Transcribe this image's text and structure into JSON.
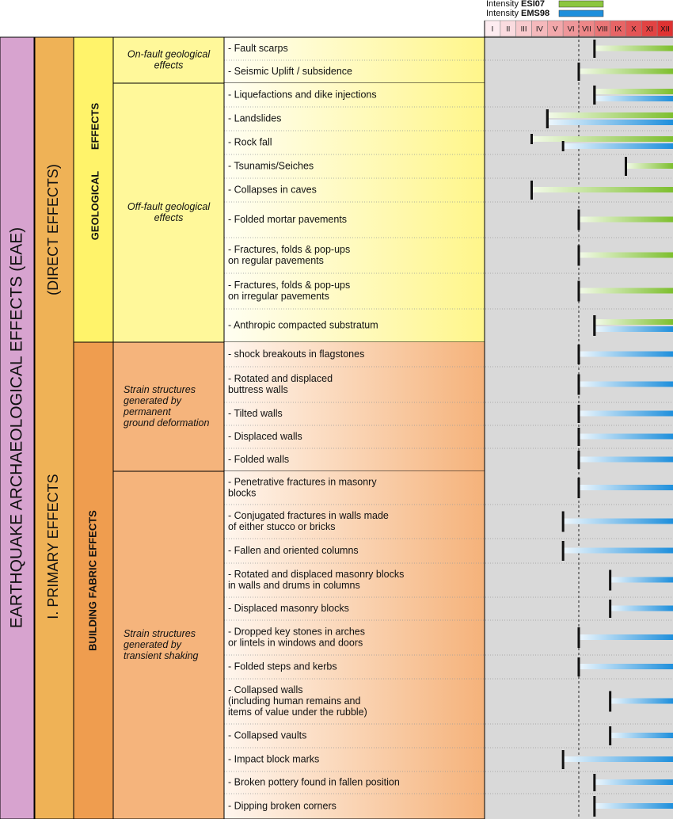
{
  "legend": [
    {
      "prefix": "Intensity",
      "name": "ESI07",
      "color": "#8cc63f"
    },
    {
      "prefix": "Intensity",
      "name": "EMS98",
      "color": "#1e8fdc"
    }
  ],
  "scale": [
    "I",
    "II",
    "III",
    "IV",
    "V",
    "VI",
    "VII",
    "VIII",
    "IX",
    "X",
    "XI",
    "XII"
  ],
  "title": "EARTHQUAKE ARCHAEOLOGICAL EFFECTS (EAE)",
  "class": {
    "name": "I. PRIMARY EFFECTS",
    "note": "(DIRECT EFFECTS)"
  },
  "groups": [
    {
      "name": [
        "GEOLOGICAL",
        "EFFECTS"
      ],
      "subgroups": [
        {
          "name": [
            "On-fault geological",
            "effects"
          ],
          "rows": [
            {
              "label": [
                "- Fault scarps"
              ],
              "esi": 8
            },
            {
              "label": [
                "- Seismic Uplift / subsidence"
              ],
              "esi": 7
            }
          ]
        },
        {
          "name": [
            "Off-fault geological",
            "effects"
          ],
          "rows": [
            {
              "label": [
                "- Liquefactions and dike injections"
              ],
              "esi": 8,
              "ems": 8
            },
            {
              "label": [
                "- Landslides"
              ],
              "esi": 5,
              "ems": 5
            },
            {
              "label": [
                "- Rock fall"
              ],
              "esi": 4,
              "ems": 6
            },
            {
              "label": [
                "- Tsunamis/Seiches"
              ],
              "esi": 10
            },
            {
              "label": [
                "- Collapses in caves"
              ],
              "esi": 4
            },
            {
              "label": [
                "- Folded mortar pavements"
              ],
              "esi": 7
            },
            {
              "label": [
                "- Fractures, folds & pop-ups",
                "on regular pavements"
              ],
              "esi": 7
            },
            {
              "label": [
                "- Fractures, folds & pop-ups",
                "on irregular pavements"
              ],
              "esi": 7
            },
            {
              "label": [
                "- Anthropic compacted substratum"
              ],
              "esi": 8,
              "ems": 8
            }
          ]
        }
      ]
    },
    {
      "name": [
        "BUILDING FABRIC EFFECTS"
      ],
      "subgroups": [
        {
          "name": [
            "Strain structures",
            "generated by",
            "permanent",
            "ground deformation"
          ],
          "rows": [
            {
              "label": [
                "- shock breakouts in flagstones"
              ],
              "ems": 7
            },
            {
              "label": [
                "- Rotated and displaced",
                "buttress walls"
              ],
              "ems": 7
            },
            {
              "label": [
                "- Tilted walls"
              ],
              "ems": 7
            },
            {
              "label": [
                "- Displaced walls"
              ],
              "ems": 7
            },
            {
              "label": [
                "- Folded walls"
              ],
              "ems": 7
            }
          ]
        },
        {
          "name": [
            "Strain structures",
            "generated by",
            "transient shaking"
          ],
          "rows": [
            {
              "label": [
                "- Penetrative fractures in masonry",
                "blocks"
              ],
              "ems": 7
            },
            {
              "label": [
                "- Conjugated fractures in walls made",
                "of either stucco or bricks"
              ],
              "ems": 6
            },
            {
              "label": [
                "- Fallen and oriented columns"
              ],
              "ems": 6
            },
            {
              "label": [
                "- Rotated and displaced masonry blocks",
                "in walls and drums in columns"
              ],
              "ems": 9
            },
            {
              "label": [
                "- Displaced masonry blocks"
              ],
              "ems": 9
            },
            {
              "label": [
                "- Dropped key stones in arches",
                "or lintels in windows and doors"
              ],
              "ems": 7
            },
            {
              "label": [
                "- Folded steps and kerbs"
              ],
              "ems": 7
            },
            {
              "label": [
                "- Collapsed walls",
                "(including human remains and",
                "items of value under the rubble)"
              ],
              "ems": 9
            },
            {
              "label": [
                "- Collapsed vaults"
              ],
              "ems": 9
            },
            {
              "label": [
                "- Impact block marks"
              ],
              "ems": 6
            },
            {
              "label": [
                "- Broken pottery found in fallen position"
              ],
              "ems": 8
            },
            {
              "label": [
                "- Dipping broken corners"
              ],
              "ems": 8
            }
          ]
        }
      ]
    }
  ]
}
